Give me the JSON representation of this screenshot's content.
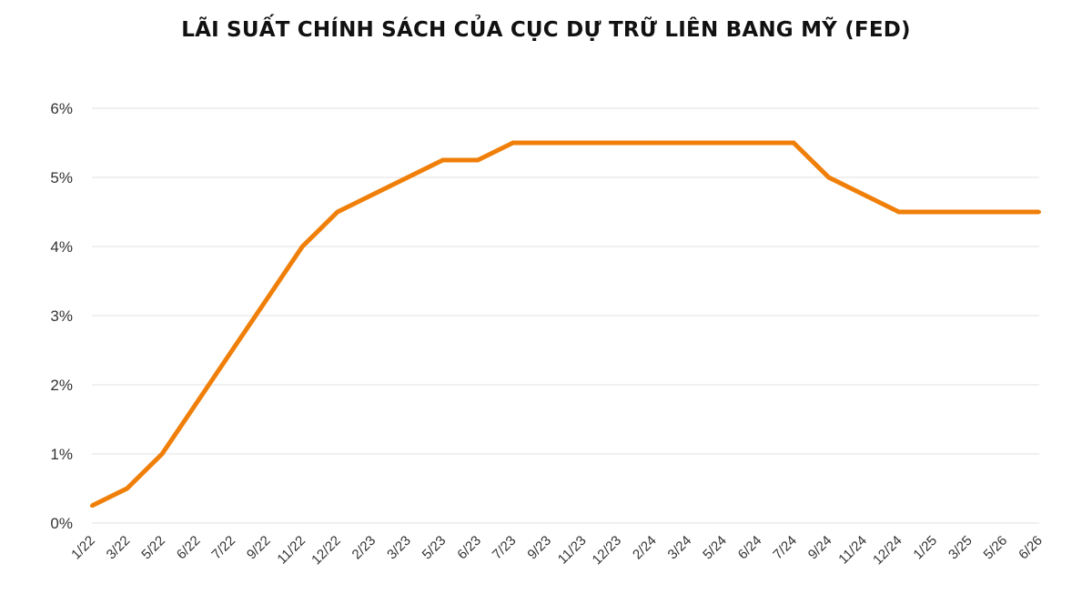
{
  "chart_data": {
    "type": "line",
    "title": "LÃI SUẤT CHÍNH SÁCH CỦA CỤC DỰ TRỮ LIÊN BANG MỸ (FED)",
    "xlabel": "",
    "ylabel": "",
    "categories": [
      "1/22",
      "3/22",
      "5/22",
      "6/22",
      "7/22",
      "9/22",
      "11/22",
      "12/22",
      "2/23",
      "3/23",
      "5/23",
      "6/23",
      "7/23",
      "9/23",
      "11/23",
      "12/23",
      "2/24",
      "3/24",
      "5/24",
      "6/24",
      "7/24",
      "9/24",
      "11/24",
      "12/24",
      "1/25",
      "3/25",
      "5/26",
      "6/26"
    ],
    "y_ticks": [
      "0%",
      "1%",
      "2%",
      "3%",
      "4%",
      "5%",
      "6%"
    ],
    "ylim": [
      0,
      6
    ],
    "grid": true,
    "legend": "none",
    "color": "#F07F09",
    "series": [
      {
        "values": [
          0.25,
          0.5,
          1.0,
          1.75,
          2.5,
          3.25,
          4.0,
          4.5,
          4.75,
          5.0,
          5.25,
          5.25,
          5.5,
          5.5,
          5.5,
          5.5,
          5.5,
          5.5,
          5.5,
          5.5,
          5.5,
          5.0,
          4.75,
          4.5,
          4.5,
          4.5,
          4.5,
          4.5
        ]
      }
    ]
  }
}
